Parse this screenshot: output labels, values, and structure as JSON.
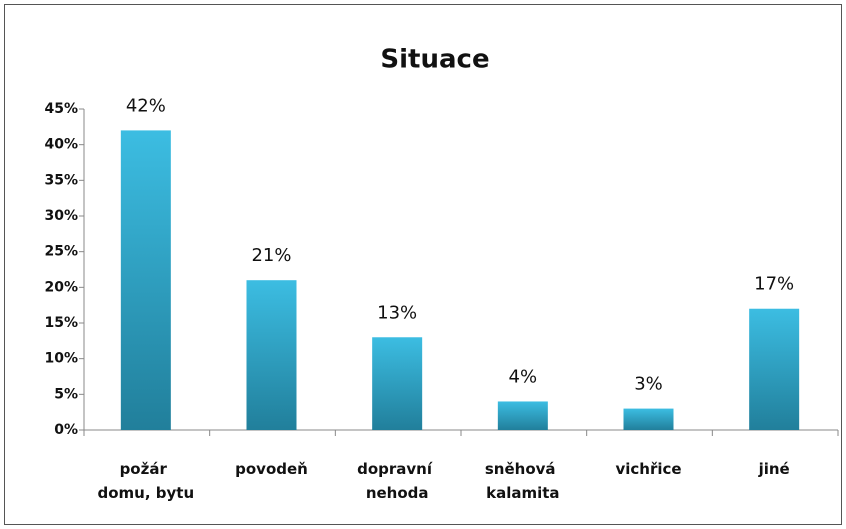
{
  "chart_data": {
    "type": "bar",
    "title": "Situace",
    "categories": [
      "požár domu, bytu",
      "povodeň",
      "dopravní nehoda",
      "sněhová kalamita",
      "vichřice",
      "jiné"
    ],
    "values": [
      42,
      21,
      13,
      4,
      3,
      17
    ],
    "value_labels": [
      "42%",
      "21%",
      "13%",
      "4%",
      "3%",
      "17%"
    ],
    "color": "#31a9cc",
    "ylim": [
      0,
      45
    ],
    "yticks": [
      {
        "value": 0,
        "label": "0%"
      },
      {
        "value": 5,
        "label": "5%"
      },
      {
        "value": 10,
        "label": "10%"
      },
      {
        "value": 15,
        "label": "15%"
      },
      {
        "value": 20,
        "label": "20%"
      },
      {
        "value": 25,
        "label": "25%"
      },
      {
        "value": 30,
        "label": "30%"
      },
      {
        "value": 35,
        "label": "35%"
      },
      {
        "value": 40,
        "label": "40%"
      },
      {
        "value": 45,
        "label": "45%"
      }
    ],
    "grid": false
  }
}
